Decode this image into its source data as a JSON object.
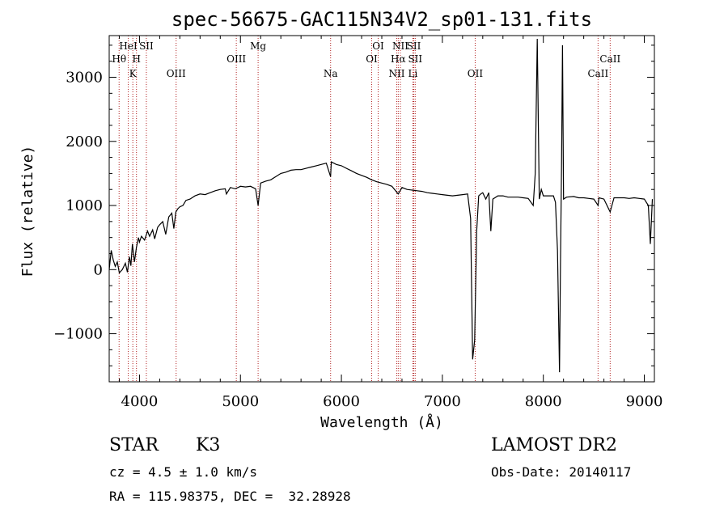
{
  "chart_data": {
    "type": "line",
    "title": "spec-56675-GAC115N34V2_sp01-131.fits",
    "xlabel": "Wavelength (Å)",
    "ylabel": "Flux (relative)",
    "xlim": [
      3700,
      9100
    ],
    "ylim": [
      -1750,
      3650
    ],
    "x_ticks": [
      4000,
      5000,
      6000,
      7000,
      8000,
      9000
    ],
    "y_ticks": [
      -1000,
      0,
      1000,
      2000,
      3000
    ],
    "grid": false,
    "line_color": "#000000",
    "marker_color": "#b22222",
    "series": [
      {
        "x": [
          3700,
          3720,
          3740,
          3760,
          3780,
          3800,
          3830,
          3860,
          3880,
          3900,
          3915,
          3930,
          3950,
          3970,
          3990,
          4000,
          4020,
          4050,
          4080,
          4100,
          4130,
          4150,
          4180,
          4200,
          4230,
          4260,
          4290,
          4320,
          4340,
          4360,
          4380,
          4400,
          4430,
          4460,
          4500,
          4550,
          4600,
          4650,
          4700,
          4750,
          4800,
          4850,
          4861,
          4900,
          4950,
          5000,
          5050,
          5100,
          5150,
          5175,
          5200,
          5250,
          5300,
          5350,
          5400,
          5450,
          5500,
          5550,
          5600,
          5650,
          5700,
          5750,
          5800,
          5850,
          5893,
          5900,
          5950,
          6000,
          6050,
          6100,
          6150,
          6200,
          6250,
          6300,
          6350,
          6400,
          6450,
          6500,
          6563,
          6600,
          6650,
          6700,
          6750,
          6800,
          6850,
          6900,
          6950,
          7000,
          7050,
          7100,
          7150,
          7200,
          7250,
          7280,
          7300,
          7320,
          7340,
          7360,
          7380,
          7400,
          7430,
          7460,
          7480,
          7500,
          7550,
          7600,
          7650,
          7700,
          7750,
          7800,
          7850,
          7900,
          7920,
          7940,
          7960,
          7980,
          8000,
          8050,
          8100,
          8120,
          8140,
          8160,
          8170,
          8180,
          8190,
          8200,
          8230,
          8300,
          8350,
          8400,
          8450,
          8500,
          8542,
          8550,
          8600,
          8662,
          8700,
          8750,
          8800,
          8850,
          8900,
          8950,
          9000,
          9040,
          9060,
          9080
        ],
        "y": [
          0,
          300,
          150,
          50,
          120,
          -50,
          0,
          100,
          -40,
          200,
          60,
          400,
          120,
          350,
          500,
          430,
          520,
          460,
          600,
          520,
          620,
          480,
          660,
          700,
          750,
          550,
          820,
          880,
          640,
          900,
          950,
          980,
          1000,
          1080,
          1100,
          1150,
          1180,
          1170,
          1200,
          1230,
          1250,
          1260,
          1180,
          1280,
          1260,
          1300,
          1290,
          1300,
          1260,
          1000,
          1350,
          1380,
          1400,
          1450,
          1500,
          1520,
          1550,
          1560,
          1560,
          1580,
          1600,
          1620,
          1640,
          1660,
          1450,
          1680,
          1640,
          1620,
          1580,
          1540,
          1500,
          1470,
          1440,
          1400,
          1370,
          1350,
          1330,
          1300,
          1180,
          1280,
          1250,
          1240,
          1230,
          1220,
          1200,
          1190,
          1180,
          1170,
          1160,
          1150,
          1160,
          1170,
          1180,
          800,
          -1400,
          -1100,
          600,
          1150,
          1180,
          1200,
          1100,
          1200,
          600,
          1100,
          1150,
          1150,
          1130,
          1130,
          1130,
          1120,
          1110,
          1000,
          1500,
          3600,
          1100,
          1250,
          1150,
          1150,
          1150,
          1050,
          300,
          -1600,
          100,
          1600,
          3500,
          1100,
          1130,
          1140,
          1120,
          1120,
          1110,
          1100,
          1000,
          1120,
          1100,
          900,
          1120,
          1120,
          1120,
          1110,
          1120,
          1110,
          1100,
          1000,
          400,
          1100
        ]
      }
    ],
    "annotations": [
      {
        "text": "Hθ",
        "x": 3798,
        "row": 3
      },
      {
        "text": "HeI",
        "x": 3889,
        "row": 1
      },
      {
        "text": "H",
        "x": 3970,
        "row": 3
      },
      {
        "text": "SII",
        "x": 4068,
        "row": 1
      },
      {
        "text": "K",
        "x": 3934,
        "row": 4
      },
      {
        "text": "OIII",
        "x": 4363,
        "row": 4
      },
      {
        "text": "OIII",
        "x": 4959,
        "row": 3
      },
      {
        "text": "Mg",
        "x": 5175,
        "row": 1
      },
      {
        "text": "Na",
        "x": 5893,
        "row": 4
      },
      {
        "text": "OI",
        "x": 6300,
        "row": 3
      },
      {
        "text": "OI",
        "x": 6364,
        "row": 1
      },
      {
        "text": "NII",
        "x": 6548,
        "row": 4
      },
      {
        "text": "NII",
        "x": 6584,
        "row": 1
      },
      {
        "text": "Hα",
        "x": 6563,
        "row": 3
      },
      {
        "text": "SII",
        "x": 6717,
        "row": 1
      },
      {
        "text": "SII",
        "x": 6731,
        "row": 3
      },
      {
        "text": "Li",
        "x": 6708,
        "row": 4
      },
      {
        "text": "OII",
        "x": 7325,
        "row": 4
      },
      {
        "text": "CaII",
        "x": 8542,
        "row": 4
      },
      {
        "text": "CaII",
        "x": 8662,
        "row": 3
      }
    ]
  },
  "footer": {
    "object_class": "STAR",
    "spectral_type": "K3",
    "survey": "LAMOST DR2",
    "redshift": "cz = 4.5 ± 1.0 km/s",
    "obs_date": "Obs-Date: 20140117",
    "coords": "RA = 115.98375, DEC =  32.28928"
  }
}
